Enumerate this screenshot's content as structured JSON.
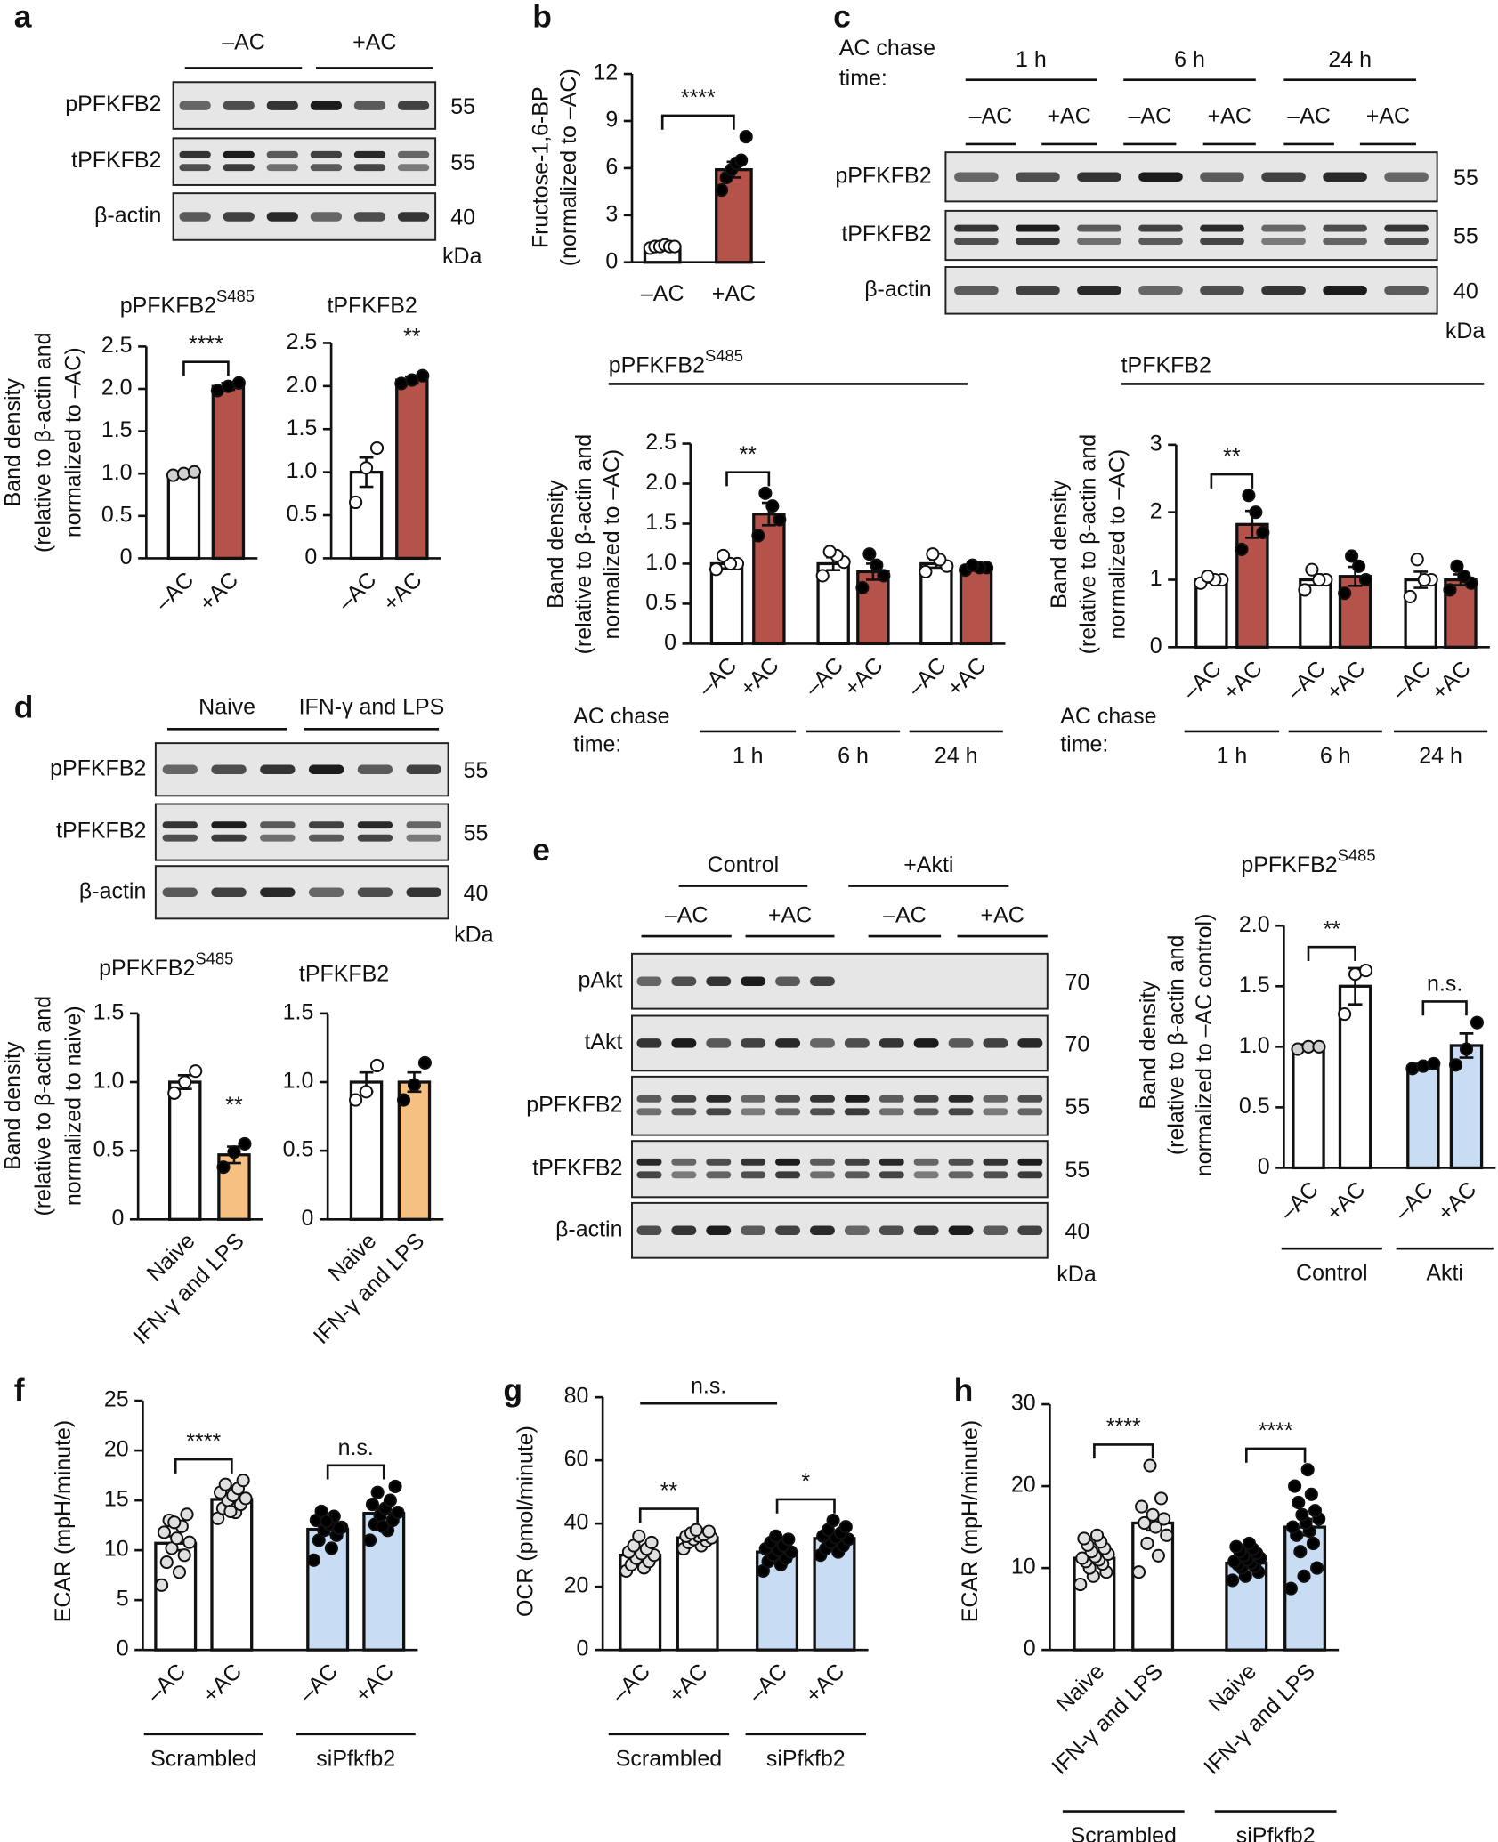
{
  "panels": [
    "a",
    "b",
    "c",
    "d",
    "e",
    "f",
    "g",
    "h"
  ],
  "blots": [
    {
      "lane_groups": [
        "–AC",
        "+AC"
      ],
      "rows": [
        {
          "label": "pPFKFB2",
          "kda": 55
        },
        {
          "label": "tPFKFB2",
          "kda": 55
        },
        {
          "label": "β-actin",
          "kda": 40
        }
      ],
      "kda_unit": "kDa"
    },
    {
      "caption": [
        "AC chase",
        "time:"
      ],
      "lane_groups": [
        "1 h",
        "6 h",
        "24 h"
      ],
      "lane_subgroups": [
        "–AC",
        "+AC",
        "–AC",
        "+AC",
        "–AC",
        "+AC"
      ],
      "rows": [
        {
          "label": "pPFKFB2",
          "kda": 55
        },
        {
          "label": "tPFKFB2",
          "kda": 55
        },
        {
          "label": "β-actin",
          "kda": 40
        }
      ],
      "kda_unit": "kDa"
    },
    {
      "lane_groups": [
        "Naive",
        "IFN-γ and LPS"
      ],
      "rows": [
        {
          "label": "pPFKFB2",
          "kda": 55
        },
        {
          "label": "tPFKFB2",
          "kda": 55
        },
        {
          "label": "β-actin",
          "kda": 40
        }
      ],
      "kda_unit": "kDa"
    },
    {
      "lane_groups": [
        "Control",
        "+Akti"
      ],
      "lane_subgroups": [
        "–AC",
        "+AC",
        "–AC",
        "+AC"
      ],
      "rows": [
        {
          "label": "pAkt",
          "kda": 70
        },
        {
          "label": "tAkt",
          "kda": 70
        },
        {
          "label": "pPFKFB2",
          "kda": 55
        },
        {
          "label": "tPFKFB2",
          "kda": 55
        },
        {
          "label": "β-actin",
          "kda": 40
        }
      ],
      "kda_unit": "kDa"
    }
  ],
  "chart_data": [
    {
      "type": "bar",
      "title": "pPFKFB2",
      "title_superscript": "S485",
      "y_label": [
        "Band density",
        "(relative to β-actin and",
        "normalized to –AC)"
      ],
      "categories": [
        "–AC",
        "+AC"
      ],
      "values": [
        1.0,
        2.03
      ],
      "errors": [
        0.02,
        0.04
      ],
      "points": [
        [
          0.98,
          1.0,
          1.02
        ],
        [
          1.98,
          2.03,
          2.07
        ]
      ],
      "colors": [
        "#ffffff",
        "#b5524a"
      ],
      "point_colors": [
        "#d0d0d0",
        "#000000"
      ],
      "ylim": [
        0,
        2.5
      ],
      "yticks": [
        0,
        0.5,
        {
          "value": 1,
          "label": "1.0"
        },
        1.5,
        {
          "value": 2,
          "label": "2.0"
        },
        2.5
      ],
      "significance": [
        {
          "label": "****",
          "between": [
            0,
            1
          ]
        }
      ]
    },
    {
      "type": "bar",
      "title": "tPFKFB2",
      "categories": [
        "–AC",
        "+AC"
      ],
      "values": [
        1.0,
        2.07
      ],
      "errors": [
        0.17,
        0.04
      ],
      "points": [
        [
          0.65,
          1.05,
          1.28
        ],
        [
          2.03,
          2.07,
          2.12
        ]
      ],
      "colors": [
        "#ffffff",
        "#b5524a"
      ],
      "point_colors": [
        "#ffffff",
        "#000000"
      ],
      "ylim": [
        0,
        2.5
      ],
      "yticks": [
        0,
        0.5,
        {
          "value": 1,
          "label": "1.0"
        },
        1.5,
        {
          "value": 2,
          "label": "2.0"
        },
        2.5
      ],
      "significance": [
        {
          "label": "**",
          "between": [
            1,
            1
          ]
        }
      ]
    },
    {
      "type": "bar",
      "y_label": [
        "Fructose-1,6-BP",
        "(normalized to –AC)"
      ],
      "categories": [
        "–AC",
        "+AC"
      ],
      "values": [
        1.0,
        5.9
      ],
      "errors": [
        0.05,
        0.5
      ],
      "points": [
        [
          0.9,
          1.0,
          1.0,
          1.1,
          1.0,
          1.0
        ],
        [
          4.6,
          5.4,
          5.9,
          6.3,
          6.5,
          8.0
        ]
      ],
      "colors": [
        "#ffffff",
        "#b5524a"
      ],
      "point_colors": [
        "#ffffff",
        "#000000"
      ],
      "ylim": [
        0,
        12
      ],
      "yticks": [
        0,
        3,
        6,
        9,
        12
      ],
      "significance": [
        {
          "label": "****",
          "between": [
            0,
            1
          ]
        }
      ]
    },
    {
      "type": "bar",
      "title": "pPFKFB2",
      "title_superscript": "S485",
      "y_label": [
        "Band density",
        "(relative to β-actin and",
        "normalized to –AC)"
      ],
      "group_title": [
        "AC chase",
        "time:"
      ],
      "categories": [
        "–AC",
        "+AC",
        "–AC",
        "+AC",
        "–AC",
        "+AC"
      ],
      "category_groups": [
        "1 h",
        "6 h",
        "24 h"
      ],
      "values": [
        1.0,
        1.62,
        1.0,
        0.9,
        1.0,
        0.95
      ],
      "errors": [
        0.06,
        0.14,
        0.08,
        0.1,
        0.05,
        0.03
      ],
      "points": [
        [
          0.93,
          1.0,
          1.0,
          1.1
        ],
        [
          1.35,
          1.55,
          1.72,
          1.88
        ],
        [
          0.85,
          1.02,
          1.1,
          1.15
        ],
        [
          0.7,
          0.85,
          0.98,
          1.12
        ],
        [
          0.9,
          0.97,
          1.05,
          1.12
        ],
        [
          0.92,
          0.95,
          0.95,
          0.98
        ]
      ],
      "colors": [
        "#ffffff",
        "#b5524a",
        "#ffffff",
        "#b5524a",
        "#ffffff",
        "#b5524a"
      ],
      "point_colors": [
        "#ffffff",
        "#000000",
        "#ffffff",
        "#000000",
        "#ffffff",
        "#000000"
      ],
      "ylim": [
        0,
        2.5
      ],
      "yticks": [
        0,
        0.5,
        {
          "value": 1,
          "label": "1.0"
        },
        1.5,
        {
          "value": 2,
          "label": "2.0"
        },
        2.5
      ],
      "significance": [
        {
          "label": "**",
          "between": [
            0,
            1
          ]
        }
      ]
    },
    {
      "type": "bar",
      "title": "tPFKFB2",
      "y_label": [
        "Band density",
        "(relative to β-actin and",
        "normalized to –AC)"
      ],
      "group_title": [
        "AC chase",
        "time:"
      ],
      "categories": [
        "–AC",
        "+AC",
        "–AC",
        "+AC",
        "–AC",
        "+AC"
      ],
      "category_groups": [
        "1 h",
        "6 h",
        "24 h"
      ],
      "values": [
        1.0,
        1.82,
        1.0,
        1.05,
        1.0,
        1.0
      ],
      "errors": [
        0.04,
        0.2,
        0.08,
        0.14,
        0.12,
        0.08
      ],
      "points": [
        [
          0.95,
          1.0,
          1.0,
          1.05
        ],
        [
          1.45,
          1.7,
          2.0,
          2.25
        ],
        [
          0.85,
          1.0,
          1.0,
          1.15
        ],
        [
          0.8,
          1.0,
          1.2,
          1.35
        ],
        [
          0.75,
          1.0,
          1.0,
          1.3
        ],
        [
          0.85,
          0.95,
          1.05,
          1.2
        ]
      ],
      "colors": [
        "#ffffff",
        "#b5524a",
        "#ffffff",
        "#b5524a",
        "#ffffff",
        "#b5524a"
      ],
      "point_colors": [
        "#ffffff",
        "#000000",
        "#ffffff",
        "#000000",
        "#ffffff",
        "#000000"
      ],
      "ylim": [
        0,
        3
      ],
      "yticks": [
        0,
        1,
        2,
        3
      ],
      "significance": [
        {
          "label": "**",
          "between": [
            0,
            1
          ]
        }
      ]
    },
    {
      "type": "bar",
      "title": "pPFKFB2",
      "title_superscript": "S485",
      "y_label": [
        "Band density",
        "(relative to β-actin and",
        "normalized to naive)"
      ],
      "categories": [
        "Naive",
        "IFN-γ and LPS"
      ],
      "values": [
        1.0,
        0.47
      ],
      "errors": [
        0.05,
        0.06
      ],
      "points": [
        [
          0.92,
          1.0,
          1.08
        ],
        [
          0.38,
          0.49,
          0.55
        ]
      ],
      "colors": [
        "#ffffff",
        "#f7c083"
      ],
      "point_colors": [
        "#ffffff",
        "#000000"
      ],
      "ylim": [
        0,
        1.5
      ],
      "yticks": [
        0,
        0.5,
        {
          "value": 1,
          "label": "1.0"
        },
        1.5
      ],
      "significance": [
        {
          "label": "**",
          "between": [
            1,
            1
          ]
        }
      ]
    },
    {
      "type": "bar",
      "title": "tPFKFB2",
      "categories": [
        "Naive",
        "IFN-γ and LPS"
      ],
      "values": [
        1.0,
        1.0
      ],
      "errors": [
        0.07,
        0.07
      ],
      "points": [
        [
          0.87,
          0.93,
          1.12
        ],
        [
          0.87,
          0.98,
          1.14
        ]
      ],
      "colors": [
        "#ffffff",
        "#f7c083"
      ],
      "point_colors": [
        "#ffffff",
        "#000000"
      ],
      "ylim": [
        0,
        1.5
      ],
      "yticks": [
        0,
        0.5,
        {
          "value": 1,
          "label": "1.0"
        },
        1.5
      ]
    },
    {
      "type": "bar",
      "title": "pPFKFB2",
      "title_superscript": "S485",
      "y_label": [
        "Band density",
        "(relative to β-actin and",
        "normalized to –AC control)"
      ],
      "categories": [
        "–AC",
        "+AC",
        "–AC",
        "+AC"
      ],
      "category_groups": [
        "Control",
        "Akti"
      ],
      "values": [
        1.0,
        1.5,
        0.84,
        1.01
      ],
      "errors": [
        0.02,
        0.15,
        0.02,
        0.1
      ],
      "points": [
        [
          0.98,
          1.0,
          1.0
        ],
        [
          1.27,
          1.6,
          1.63
        ],
        [
          0.82,
          0.84,
          0.86
        ],
        [
          0.85,
          0.98,
          1.2
        ]
      ],
      "colors": [
        "#ffffff",
        "#ffffff",
        "#c8dcf3",
        "#c8dcf3"
      ],
      "point_colors": [
        "#d0d0d0",
        "#ffffff",
        "#000000",
        "#000000"
      ],
      "ylim": [
        0,
        2
      ],
      "yticks": [
        0,
        0.5,
        {
          "value": 1,
          "label": "1.0"
        },
        1.5,
        {
          "value": 2,
          "label": "2.0"
        }
      ],
      "significance": [
        {
          "label": "**",
          "between": [
            0,
            1
          ]
        },
        {
          "label": "n.s.",
          "between": [
            2,
            3
          ]
        }
      ]
    },
    {
      "type": "bar",
      "y_label": [
        "ECAR (mpH/minute)"
      ],
      "categories": [
        "–AC",
        "+AC",
        "–AC",
        "+AC"
      ],
      "category_groups": [
        "Scrambled",
        "siPfkfb2"
      ],
      "values": [
        10.7,
        15.1,
        12.1,
        13.7
      ],
      "errors": [
        0.7,
        0.4,
        0.5,
        0.5
      ],
      "points": [
        [
          6.5,
          7.8,
          8.8,
          9.5,
          10.2,
          10.8,
          11.2,
          11.8,
          12.4,
          13.0,
          13.6,
          12.8
        ],
        [
          13.2,
          13.8,
          14.2,
          14.6,
          15,
          15.2,
          15.5,
          15.8,
          16.2,
          16.6,
          17,
          13.9
        ],
        [
          9,
          10.2,
          11,
          11.5,
          12,
          12.3,
          12.6,
          13,
          13.4,
          13.9,
          12.2,
          12.9
        ],
        [
          11,
          12,
          12.6,
          13,
          13.5,
          13.8,
          14.2,
          14.6,
          15,
          15.8,
          16.4,
          12.4
        ]
      ],
      "colors": [
        "#ffffff",
        "#ffffff",
        "#c8dcf3",
        "#c8dcf3"
      ],
      "point_colors": [
        "#e0e0e0",
        "#e0e0e0",
        "#000000",
        "#000000"
      ],
      "ylim": [
        0,
        25
      ],
      "yticks": [
        0,
        5,
        10,
        15,
        20,
        25
      ],
      "significance": [
        {
          "label": "****",
          "between": [
            0,
            1
          ]
        },
        {
          "label": "n.s.",
          "between": [
            2,
            3
          ]
        }
      ]
    },
    {
      "type": "bar",
      "y_label": [
        "OCR (pmol/minute)"
      ],
      "categories": [
        "–AC",
        "+AC",
        "–AC",
        "+AC"
      ],
      "category_groups": [
        "Scrambled",
        "siPfkfb2"
      ],
      "values": [
        30,
        35.5,
        31,
        35.3
      ],
      "errors": [
        1,
        0.8,
        1,
        1.3
      ],
      "points": [
        [
          25,
          26,
          27,
          28,
          29,
          30,
          30.5,
          31,
          32,
          33,
          34,
          36
        ],
        [
          32,
          33,
          34,
          34.5,
          35,
          35.5,
          36,
          36,
          36.5,
          37,
          37.5,
          38
        ],
        [
          25,
          27,
          28,
          29,
          30,
          31,
          31.5,
          32,
          33,
          34,
          35,
          36
        ],
        [
          30,
          31,
          32,
          33,
          34,
          35,
          35.5,
          36,
          37,
          38,
          39,
          41
        ]
      ],
      "colors": [
        "#ffffff",
        "#ffffff",
        "#c8dcf3",
        "#c8dcf3"
      ],
      "point_colors": [
        "#e0e0e0",
        "#e0e0e0",
        "#000000",
        "#000000"
      ],
      "ylim": [
        0,
        80
      ],
      "yticks": [
        0,
        20,
        40,
        60,
        80
      ],
      "significance": [
        {
          "label": "**",
          "between": [
            0,
            1
          ]
        },
        {
          "label": "*",
          "between": [
            2,
            3
          ]
        },
        {
          "label": "n.s.",
          "between": [
            0,
            2
          ],
          "bracket": false
        }
      ]
    },
    {
      "type": "bar",
      "y_label": [
        "ECAR (mpH/minute)"
      ],
      "categories": [
        "Naive",
        "IFN-γ and LPS",
        "Naive",
        "IFN-γ and LPS"
      ],
      "category_groups": [
        "Scrambled",
        "siPfkfb2"
      ],
      "values": [
        11.2,
        15.5,
        10.6,
        15
      ],
      "errors": [
        0.4,
        0.9,
        0.3,
        1
      ],
      "points": [
        [
          8,
          9,
          9.5,
          10,
          10.5,
          10.8,
          11,
          11.2,
          11.4,
          11.7,
          12,
          12.4,
          12.8,
          13.2,
          13.6,
          14
        ],
        [
          9.5,
          11.5,
          13,
          14,
          15,
          15.5,
          16,
          16.5,
          17.5,
          18.5,
          22.5
        ],
        [
          8.5,
          9,
          9.5,
          10,
          10.2,
          10.4,
          10.6,
          10.8,
          11,
          11.2,
          11.5,
          11.8,
          12,
          12.3,
          12.6,
          13
        ],
        [
          7.5,
          9,
          10,
          12,
          13,
          14,
          14.5,
          15,
          15.5,
          16,
          16.5,
          17,
          18,
          19,
          20,
          22
        ]
      ],
      "colors": [
        "#ffffff",
        "#ffffff",
        "#c8dcf3",
        "#c8dcf3"
      ],
      "point_colors": [
        "#e0e0e0",
        "#e0e0e0",
        "#000000",
        "#000000"
      ],
      "ylim": [
        0,
        30
      ],
      "yticks": [
        0,
        10,
        20,
        30
      ],
      "significance": [
        {
          "label": "****",
          "between": [
            0,
            1
          ]
        },
        {
          "label": "****",
          "between": [
            2,
            3
          ]
        }
      ]
    }
  ]
}
